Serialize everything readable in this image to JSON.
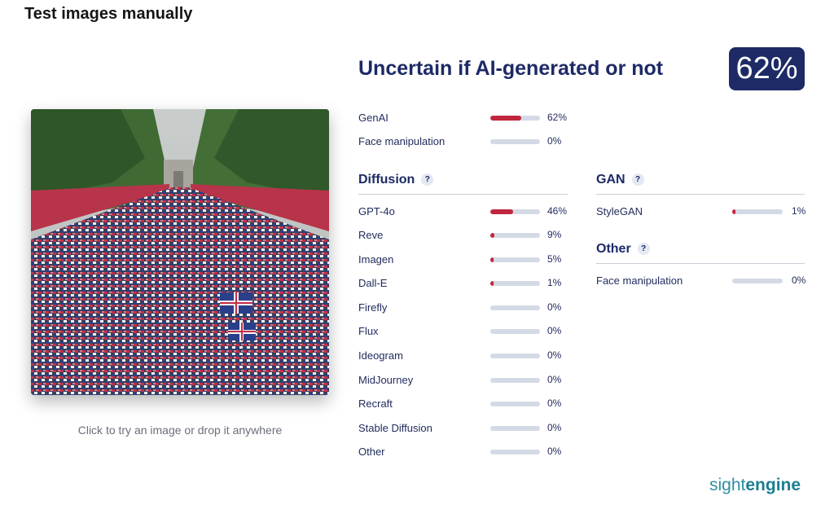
{
  "page": {
    "title": "Test images manually"
  },
  "upload": {
    "hint": "Click to try an image or drop it anywhere"
  },
  "verdict": {
    "label": "Uncertain if AI-generated or not",
    "score_text": "62%",
    "score": 62
  },
  "summary": [
    {
      "label": "GenAI",
      "pct": 62,
      "pct_text": "62%"
    },
    {
      "label": "Face manipulation",
      "pct": 0,
      "pct_text": "0%"
    }
  ],
  "sections": {
    "diffusion": {
      "title": "Diffusion",
      "help": "?",
      "items": [
        {
          "label": "GPT-4o",
          "pct": 46,
          "pct_text": "46%"
        },
        {
          "label": "Reve",
          "pct": 9,
          "pct_text": "9%"
        },
        {
          "label": "Imagen",
          "pct": 5,
          "pct_text": "5%"
        },
        {
          "label": "Dall-E",
          "pct": 1,
          "pct_text": "1%"
        },
        {
          "label": "Firefly",
          "pct": 0,
          "pct_text": "0%"
        },
        {
          "label": "Flux",
          "pct": 0,
          "pct_text": "0%"
        },
        {
          "label": "Ideogram",
          "pct": 0,
          "pct_text": "0%"
        },
        {
          "label": "MidJourney",
          "pct": 0,
          "pct_text": "0%"
        },
        {
          "label": "Recraft",
          "pct": 0,
          "pct_text": "0%"
        },
        {
          "label": "Stable Diffusion",
          "pct": 0,
          "pct_text": "0%"
        },
        {
          "label": "Other",
          "pct": 0,
          "pct_text": "0%"
        }
      ]
    },
    "gan": {
      "title": "GAN",
      "help": "?",
      "items": [
        {
          "label": "StyleGAN",
          "pct": 1,
          "pct_text": "1%"
        }
      ]
    },
    "other": {
      "title": "Other",
      "help": "?",
      "items": [
        {
          "label": "Face manipulation",
          "pct": 0,
          "pct_text": "0%"
        }
      ]
    }
  },
  "brand": {
    "part1": "sight",
    "part2": "engine"
  },
  "colors": {
    "accent": "#c0263d",
    "track": "#d4dae5",
    "navy": "#1d2a66",
    "brand": "#2f8fa0"
  }
}
